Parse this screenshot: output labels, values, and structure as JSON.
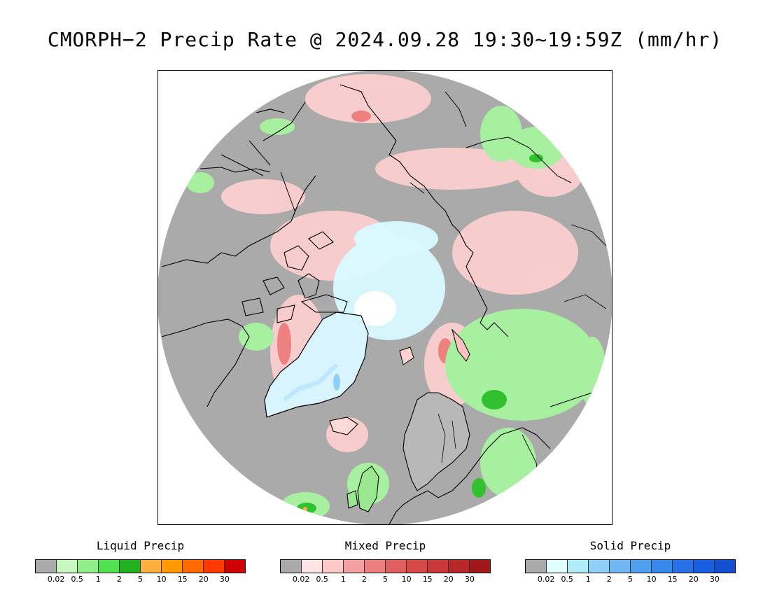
{
  "title": "CMORPH−2 Precip Rate @ 2024.09.28 19:30~19:59Z (mm/hr)",
  "map": {
    "projection": "polar-stereographic-north",
    "background_color": "#aaaaaa",
    "coastline_color": "#000000",
    "features": [
      {
        "name": "greenland",
        "kind": "snow-ice"
      },
      {
        "name": "arctic-ocean",
        "kind": "mixed-light"
      },
      {
        "name": "scandinavia",
        "kind": "coastline"
      },
      {
        "name": "british-isles",
        "kind": "coastline"
      },
      {
        "name": "siberia",
        "kind": "coastline"
      },
      {
        "name": "canada-archipelago",
        "kind": "coastline"
      },
      {
        "name": "alaska",
        "kind": "coastline"
      }
    ]
  },
  "legends": [
    {
      "id": "liquid",
      "title": "Liquid Precip",
      "colors": [
        "#aaaaaa",
        "#c8f8c0",
        "#90ee88",
        "#50e050",
        "#20b020",
        "#ffb040",
        "#ff9a00",
        "#ff6a00",
        "#ff3a00",
        "#d00000"
      ],
      "ticks": [
        "0.02",
        "0.5",
        "1",
        "2",
        "5",
        "10",
        "15",
        "20",
        "30"
      ]
    },
    {
      "id": "mixed",
      "title": "Mixed Precip",
      "colors": [
        "#aaaaaa",
        "#ffe4e4",
        "#ffc8c8",
        "#f4a0a0",
        "#ec8080",
        "#e06060",
        "#d44848",
        "#c83838",
        "#b82828",
        "#a01818"
      ],
      "ticks": [
        "0.02",
        "0.5",
        "1",
        "2",
        "5",
        "10",
        "15",
        "20",
        "30"
      ]
    },
    {
      "id": "solid",
      "title": "Solid Precip",
      "colors": [
        "#aaaaaa",
        "#e0ffff",
        "#b0ecf8",
        "#90d0f8",
        "#70b8f4",
        "#50a0f0",
        "#3888ec",
        "#2870e8",
        "#1a5ee0",
        "#1050d0"
      ],
      "ticks": [
        "0.02",
        "0.5",
        "1",
        "2",
        "5",
        "10",
        "15",
        "20",
        "30"
      ]
    }
  ]
}
